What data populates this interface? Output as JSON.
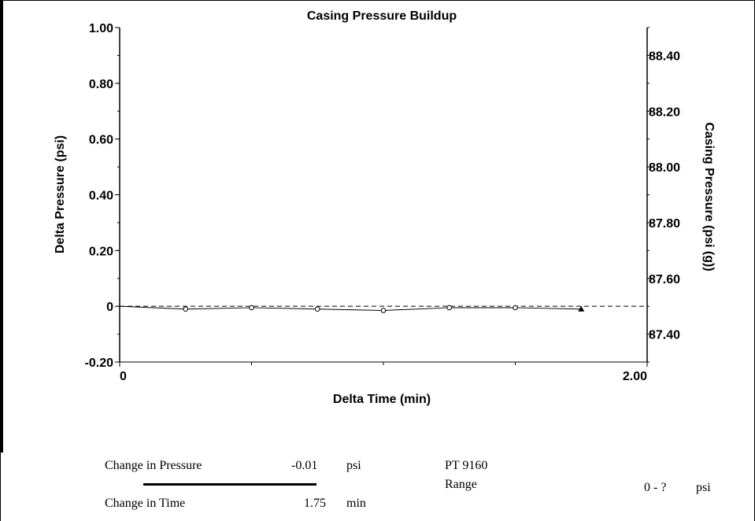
{
  "chart_data": {
    "type": "line",
    "title": "Casing Pressure Buildup",
    "xlabel": "Delta Time (min)",
    "ylabel": "Delta Pressure (psi)",
    "y2label": "Casing Pressure (psi (g))",
    "xlim": [
      0,
      2.0
    ],
    "ylim": [
      -0.2,
      1.0
    ],
    "y2lim": [
      87.3,
      88.5
    ],
    "x_ticks": [
      "0",
      "2.00"
    ],
    "y_ticks": [
      {
        "value": 1.0,
        "label": "1.00"
      },
      {
        "value": 0.8,
        "label": "0.80"
      },
      {
        "value": 0.6,
        "label": "0.60"
      },
      {
        "value": 0.4,
        "label": "0.40"
      },
      {
        "value": 0.2,
        "label": "0.20"
      },
      {
        "value": 0.0,
        "label": "0"
      },
      {
        "value": -0.2,
        "label": "-0.20"
      }
    ],
    "y2_ticks": [
      {
        "value": 88.4,
        "label": "88.40"
      },
      {
        "value": 88.2,
        "label": "88.20"
      },
      {
        "value": 88.0,
        "label": "88.00"
      },
      {
        "value": 87.8,
        "label": "87.80"
      },
      {
        "value": 87.6,
        "label": "87.60"
      },
      {
        "value": 87.4,
        "label": "87.40"
      }
    ],
    "reference_line": {
      "value": 0.0,
      "style": "dashed"
    },
    "series": [
      {
        "marker": "circle",
        "x": [
          0.0,
          0.25,
          0.5,
          0.75,
          1.0,
          1.25,
          1.5,
          1.75
        ],
        "y": [
          0.0,
          -0.01,
          -0.005,
          -0.01,
          -0.015,
          -0.005,
          -0.005,
          -0.01
        ]
      }
    ],
    "last_point_marker": "triangle",
    "grid": false
  },
  "footer": {
    "change_pressure_label": "Change in Pressure",
    "change_pressure_value": "-0.01",
    "change_pressure_unit": "psi",
    "change_time_label": "Change in Time",
    "change_time_value": "1.75",
    "change_time_unit": "min",
    "gauge_name": "PT 9160",
    "range_label": "Range",
    "range_value": "0 - ?",
    "range_unit": "psi"
  }
}
